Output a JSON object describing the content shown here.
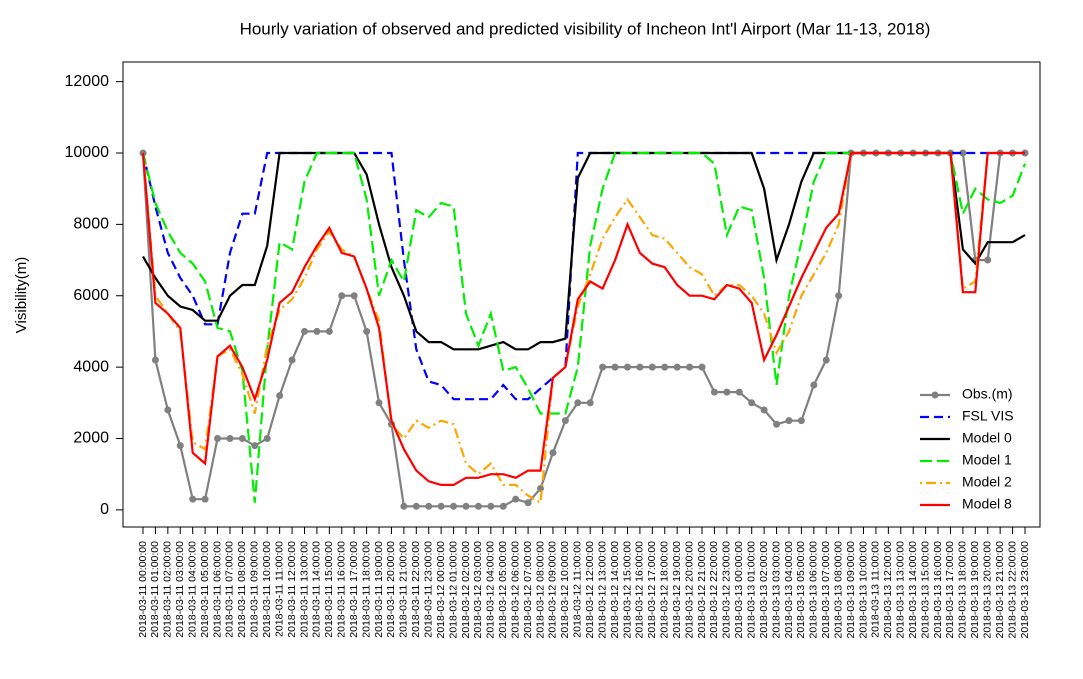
{
  "chart_data": {
    "type": "line",
    "title": "Hourly variation of observed and predicted visibility of Incheon Int'l Airport (Mar 11-13, 2018)",
    "y_label": "Visibility(m)",
    "categories": [
      "2018-03-11 00:00:00",
      "2018-03-11 01:00:00",
      "2018-03-11 02:00:00",
      "2018-03-11 03:00:00",
      "2018-03-11 04:00:00",
      "2018-03-11 05:00:00",
      "2018-03-11 06:00:00",
      "2018-03-11 07:00:00",
      "2018-03-11 08:00:00",
      "2018-03-11 09:00:00",
      "2018-03-11 10:00:00",
      "2018-03-11 11:00:00",
      "2018-03-11 12:00:00",
      "2018-03-11 13:00:00",
      "2018-03-11 14:00:00",
      "2018-03-11 15:00:00",
      "2018-03-11 16:00:00",
      "2018-03-11 17:00:00",
      "2018-03-11 18:00:00",
      "2018-03-11 19:00:00",
      "2018-03-11 20:00:00",
      "2018-03-11 21:00:00",
      "2018-03-11 22:00:00",
      "2018-03-11 23:00:00",
      "2018-03-12 00:00:00",
      "2018-03-12 01:00:00",
      "2018-03-12 02:00:00",
      "2018-03-12 03:00:00",
      "2018-03-12 04:00:00",
      "2018-03-12 05:00:00",
      "2018-03-12 06:00:00",
      "2018-03-12 07:00:00",
      "2018-03-12 08:00:00",
      "2018-03-12 09:00:00",
      "2018-03-12 10:00:00",
      "2018-03-12 11:00:00",
      "2018-03-12 12:00:00",
      "2018-03-12 13:00:00",
      "2018-03-12 14:00:00",
      "2018-03-12 15:00:00",
      "2018-03-12 16:00:00",
      "2018-03-12 17:00:00",
      "2018-03-12 18:00:00",
      "2018-03-12 19:00:00",
      "2018-03-12 20:00:00",
      "2018-03-12 21:00:00",
      "2018-03-12 22:00:00",
      "2018-03-12 23:00:00",
      "2018-03-13 00:00:00",
      "2018-03-13 01:00:00",
      "2018-03-13 02:00:00",
      "2018-03-13 03:00:00",
      "2018-03-13 04:00:00",
      "2018-03-13 05:00:00",
      "2018-03-13 06:00:00",
      "2018-03-13 07:00:00",
      "2018-03-13 08:00:00",
      "2018-03-13 09:00:00",
      "2018-03-13 10:00:00",
      "2018-03-13 11:00:00",
      "2018-03-13 12:00:00",
      "2018-03-13 13:00:00",
      "2018-03-13 14:00:00",
      "2018-03-13 15:00:00",
      "2018-03-13 16:00:00",
      "2018-03-13 17:00:00",
      "2018-03-13 18:00:00",
      "2018-03-13 19:00:00",
      "2018-03-13 20:00:00",
      "2018-03-13 21:00:00",
      "2018-03-13 22:00:00",
      "2018-03-13 23:00:00"
    ],
    "series": [
      {
        "name": "Obs.(m)",
        "color": "#808080",
        "dash": "solid",
        "marker": true,
        "values": [
          10000,
          4200,
          2800,
          1800,
          300,
          300,
          2000,
          2000,
          2000,
          1800,
          2000,
          3200,
          4200,
          5000,
          5000,
          5000,
          6000,
          6000,
          5000,
          3000,
          2400,
          100,
          100,
          100,
          100,
          100,
          100,
          100,
          100,
          100,
          300,
          200,
          600,
          1600,
          2500,
          3000,
          3000,
          4000,
          4000,
          4000,
          4000,
          4000,
          4000,
          4000,
          4000,
          4000,
          3300,
          3300,
          3300,
          3000,
          2800,
          2400,
          2500,
          2500,
          3500,
          4200,
          6000,
          10000,
          10000,
          10000,
          10000,
          10000,
          10000,
          10000,
          10000,
          10000,
          10000,
          7000,
          7000,
          10000,
          10000,
          10000
        ]
      },
      {
        "name": "FSL VIS",
        "color": "#0000ff",
        "dash": "dashed",
        "marker": false,
        "values": [
          10000,
          8500,
          7200,
          6500,
          6000,
          5200,
          5200,
          7200,
          8300,
          8300,
          10000,
          10000,
          10000,
          10000,
          10000,
          10000,
          10000,
          10000,
          10000,
          10000,
          10000,
          7000,
          4500,
          3600,
          3500,
          3100,
          3100,
          3100,
          3100,
          3500,
          3100,
          3100,
          3400,
          3700,
          4000,
          10000,
          10000,
          10000,
          10000,
          10000,
          10000,
          10000,
          10000,
          10000,
          10000,
          10000,
          10000,
          10000,
          10000,
          10000,
          10000,
          10000,
          10000,
          10000,
          10000,
          10000,
          10000,
          10000,
          10000,
          10000,
          10000,
          10000,
          10000,
          10000,
          10000,
          10000,
          10000,
          10000,
          10000,
          10000,
          10000,
          10000
        ]
      },
      {
        "name": "Model 0",
        "color": "#000000",
        "dash": "solid",
        "marker": false,
        "values": [
          7100,
          6500,
          6000,
          5700,
          5600,
          5300,
          5300,
          6000,
          6300,
          6300,
          7400,
          10000,
          10000,
          10000,
          10000,
          10000,
          10000,
          10000,
          9400,
          8000,
          6800,
          6000,
          5000,
          4700,
          4700,
          4500,
          4500,
          4500,
          4600,
          4700,
          4500,
          4500,
          4700,
          4700,
          4800,
          9300,
          10000,
          10000,
          10000,
          10000,
          10000,
          10000,
          10000,
          10000,
          10000,
          10000,
          10000,
          10000,
          10000,
          10000,
          9000,
          7000,
          8000,
          9200,
          10000,
          10000,
          10000,
          10000,
          10000,
          10000,
          10000,
          10000,
          10000,
          10000,
          10000,
          10000,
          7300,
          6900,
          7500,
          7500,
          7500,
          7700
        ]
      },
      {
        "name": "Model 1",
        "color": "#00ee00",
        "dash": "longdash",
        "marker": false,
        "values": [
          10000,
          8600,
          7800,
          7200,
          6900,
          6400,
          5100,
          5000,
          3900,
          200,
          4500,
          7500,
          7300,
          9200,
          10000,
          10000,
          10000,
          10000,
          8700,
          6000,
          7000,
          6400,
          8400,
          8200,
          8600,
          8500,
          5500,
          4600,
          5500,
          3900,
          4000,
          3400,
          2700,
          2700,
          2700,
          4000,
          7400,
          9000,
          10000,
          10000,
          10000,
          10000,
          10000,
          10000,
          10000,
          10000,
          9700,
          7700,
          8500,
          8400,
          6500,
          3500,
          6000,
          7500,
          9200,
          10000,
          10000,
          10000,
          10000,
          10000,
          10000,
          10000,
          10000,
          10000,
          10000,
          10000,
          8300,
          9000,
          8700,
          8600,
          8800,
          9700
        ]
      },
      {
        "name": "Model 2",
        "color": "#ffa500",
        "dash": "dotdash",
        "marker": false,
        "values": [
          10000,
          6000,
          5500,
          5000,
          1900,
          1700,
          4300,
          4500,
          3800,
          2700,
          4600,
          5600,
          5900,
          6500,
          7300,
          7800,
          7300,
          7100,
          6200,
          5300,
          2400,
          2000,
          2500,
          2300,
          2500,
          2400,
          1300,
          1000,
          1300,
          700,
          700,
          400,
          200,
          3700,
          4000,
          5700,
          6600,
          7600,
          8200,
          8700,
          8200,
          7700,
          7600,
          7200,
          6800,
          6600,
          6000,
          6300,
          6300,
          6000,
          5500,
          4400,
          5000,
          6000,
          6600,
          7200,
          8000,
          10000,
          10000,
          10000,
          10000,
          10000,
          10000,
          10000,
          10000,
          10000,
          6200,
          6400,
          10000,
          10000,
          10000,
          10000
        ]
      },
      {
        "name": "Model 8",
        "color": "#ff0000",
        "dash": "solid",
        "marker": false,
        "values": [
          10000,
          5800,
          5500,
          5100,
          1600,
          1300,
          4300,
          4600,
          4000,
          3100,
          4200,
          5800,
          6100,
          6800,
          7400,
          7900,
          7200,
          7100,
          6200,
          5100,
          2500,
          1700,
          1100,
          800,
          700,
          700,
          900,
          900,
          1000,
          1000,
          900,
          1100,
          1100,
          3700,
          4000,
          5900,
          6400,
          6200,
          7000,
          8000,
          7200,
          6900,
          6800,
          6300,
          6000,
          6000,
          5900,
          6300,
          6200,
          5800,
          4200,
          4900,
          5700,
          6500,
          7200,
          7900,
          8300,
          10000,
          10000,
          10000,
          10000,
          10000,
          10000,
          10000,
          10000,
          10000,
          6100,
          6100,
          10000,
          10000,
          10000,
          10000
        ]
      }
    ],
    "ylim": [
      -480,
      12550
    ],
    "yticks": [
      0,
      2000,
      4000,
      6000,
      8000,
      10000,
      12000
    ],
    "grid": false,
    "legend": "bottom-right"
  }
}
